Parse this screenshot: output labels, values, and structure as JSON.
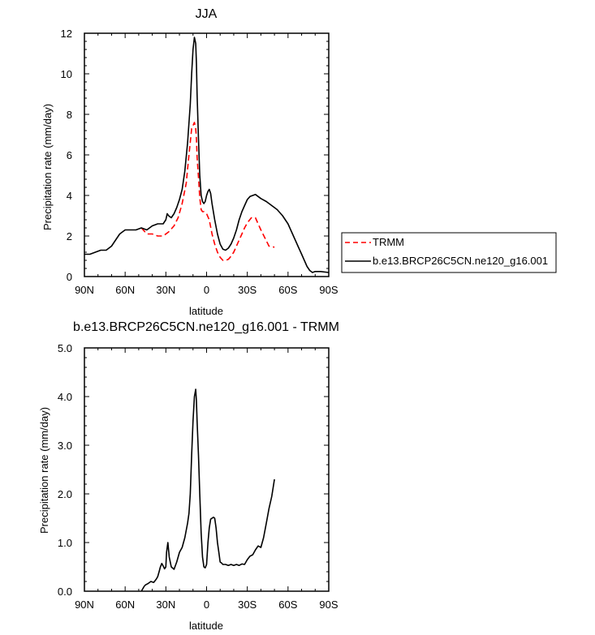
{
  "chart_data": [
    {
      "type": "line",
      "title": "JJA",
      "xlabel": "latitude",
      "ylabel": "Precipitation rate (mm/day)",
      "xlim": [
        90,
        -90
      ],
      "ylim": [
        0,
        12
      ],
      "x_ticks": [
        90,
        60,
        30,
        0,
        -30,
        -60,
        -90
      ],
      "x_tick_labels": [
        "90N",
        "60N",
        "30N",
        "0",
        "30S",
        "60S",
        "90S"
      ],
      "y_ticks": [
        0,
        2,
        4,
        6,
        8,
        10,
        12
      ],
      "y_tick_labels": [
        "0",
        "2",
        "4",
        "6",
        "8",
        "10",
        "12"
      ],
      "grid": false,
      "legend": "right, outside plot",
      "series": [
        {
          "name": "TRMM",
          "color": "#ff0000",
          "dash": "dashed",
          "x": [
            48,
            44,
            40,
            36,
            32,
            28,
            24,
            21,
            18,
            15,
            13,
            11,
            9,
            8,
            7.5,
            7,
            6,
            5,
            4,
            3,
            2,
            0,
            -2,
            -4,
            -6,
            -8,
            -10,
            -12,
            -14,
            -16,
            -18,
            -20,
            -22,
            -24,
            -26,
            -28,
            -30,
            -33,
            -36,
            -38,
            -40,
            -43,
            -46,
            -50
          ],
          "y": [
            2.4,
            2.1,
            2.1,
            2.0,
            2.0,
            2.2,
            2.5,
            2.9,
            3.6,
            4.6,
            6.0,
            7.3,
            7.6,
            7.3,
            6.8,
            5.9,
            4.9,
            3.9,
            3.3,
            3.2,
            3.2,
            3.1,
            2.8,
            2.1,
            1.6,
            1.2,
            0.95,
            0.8,
            0.8,
            0.85,
            1.0,
            1.2,
            1.5,
            1.8,
            2.1,
            2.4,
            2.65,
            2.9,
            2.9,
            2.6,
            2.3,
            1.9,
            1.5,
            1.45
          ]
        },
        {
          "name": "b.e13.BRCP26C5CN.ne120_g16.001",
          "color": "#000000",
          "dash": "solid",
          "x": [
            90,
            86,
            82,
            78,
            74,
            70,
            66,
            64,
            62,
            60,
            56,
            52,
            48,
            44,
            40,
            36,
            32,
            30,
            29,
            28,
            26,
            24,
            22,
            20,
            18,
            16,
            14,
            12,
            11,
            10,
            9,
            8,
            7.5,
            7,
            6,
            5,
            4,
            3,
            2,
            1,
            0,
            -1,
            -2,
            -3,
            -4,
            -6,
            -8,
            -10,
            -12,
            -14,
            -16,
            -18,
            -20,
            -22,
            -24,
            -26,
            -28,
            -30,
            -32,
            -34,
            -36,
            -38,
            -40,
            -44,
            -48,
            -52,
            -56,
            -60,
            -64,
            -68,
            -70,
            -72,
            -74,
            -76,
            -78,
            -80,
            -84,
            -90
          ],
          "y": [
            1.1,
            1.1,
            1.2,
            1.3,
            1.3,
            1.5,
            1.9,
            2.1,
            2.2,
            2.3,
            2.3,
            2.3,
            2.4,
            2.3,
            2.5,
            2.6,
            2.6,
            2.8,
            3.1,
            3.0,
            2.9,
            3.1,
            3.4,
            3.8,
            4.3,
            5.2,
            6.6,
            8.5,
            10.0,
            11.2,
            11.8,
            11.5,
            10.5,
            9.0,
            6.8,
            5.0,
            4.0,
            3.7,
            3.6,
            3.7,
            4.0,
            4.2,
            4.3,
            4.1,
            3.6,
            2.8,
            2.1,
            1.6,
            1.35,
            1.3,
            1.4,
            1.6,
            1.9,
            2.3,
            2.8,
            3.2,
            3.5,
            3.8,
            3.95,
            4.0,
            4.05,
            3.95,
            3.85,
            3.7,
            3.5,
            3.3,
            3.0,
            2.6,
            2.0,
            1.4,
            1.1,
            0.8,
            0.5,
            0.3,
            0.2,
            0.25,
            0.25,
            0.2
          ]
        }
      ]
    },
    {
      "type": "line",
      "title": "b.e13.BRCP26C5CN.ne120_g16.001 - TRMM",
      "xlabel": "latitude",
      "ylabel": "Precipitation rate (mm/day)",
      "xlim": [
        90,
        -90
      ],
      "ylim": [
        0,
        5
      ],
      "x_ticks": [
        90,
        60,
        30,
        0,
        -30,
        -60,
        -90
      ],
      "x_tick_labels": [
        "90N",
        "60N",
        "30N",
        "0",
        "30S",
        "60S",
        "90S"
      ],
      "y_ticks": [
        0,
        1,
        2,
        3,
        4,
        5
      ],
      "y_tick_labels": [
        "0.0",
        "1.0",
        "2.0",
        "3.0",
        "4.0",
        "5.0"
      ],
      "grid": false,
      "series": [
        {
          "color": "#000000",
          "dash": "solid",
          "x": [
            48,
            46,
            45,
            43,
            41,
            39,
            37,
            36,
            35,
            34,
            33,
            32,
            31,
            30,
            29.5,
            28.5,
            27.5,
            26,
            24,
            22,
            20,
            18,
            16,
            14,
            13,
            12,
            11,
            10,
            9,
            8,
            7.5,
            7,
            6,
            5,
            4,
            3,
            2,
            1,
            0,
            -1,
            -2,
            -3,
            -4,
            -5,
            -6,
            -7,
            -8,
            -9,
            -10,
            -11,
            -12,
            -14,
            -16,
            -18,
            -20,
            -22,
            -24,
            -26,
            -28,
            -30,
            -32,
            -34,
            -36,
            -38,
            -40,
            -42,
            -44,
            -46,
            -48,
            -50
          ],
          "y": [
            0.0,
            0.1,
            0.13,
            0.16,
            0.2,
            0.18,
            0.25,
            0.3,
            0.4,
            0.5,
            0.57,
            0.52,
            0.46,
            0.5,
            0.8,
            1.0,
            0.7,
            0.5,
            0.45,
            0.6,
            0.8,
            0.9,
            1.1,
            1.4,
            1.6,
            2.0,
            2.8,
            3.5,
            4.0,
            4.15,
            3.9,
            3.5,
            2.8,
            2.0,
            1.2,
            0.7,
            0.5,
            0.48,
            0.55,
            1.0,
            1.3,
            1.48,
            1.5,
            1.52,
            1.5,
            1.3,
            1.0,
            0.8,
            0.6,
            0.58,
            0.55,
            0.55,
            0.53,
            0.55,
            0.53,
            0.55,
            0.53,
            0.56,
            0.55,
            0.65,
            0.72,
            0.75,
            0.85,
            0.93,
            0.9,
            1.1,
            1.4,
            1.7,
            1.95,
            2.3
          ]
        }
      ]
    }
  ]
}
